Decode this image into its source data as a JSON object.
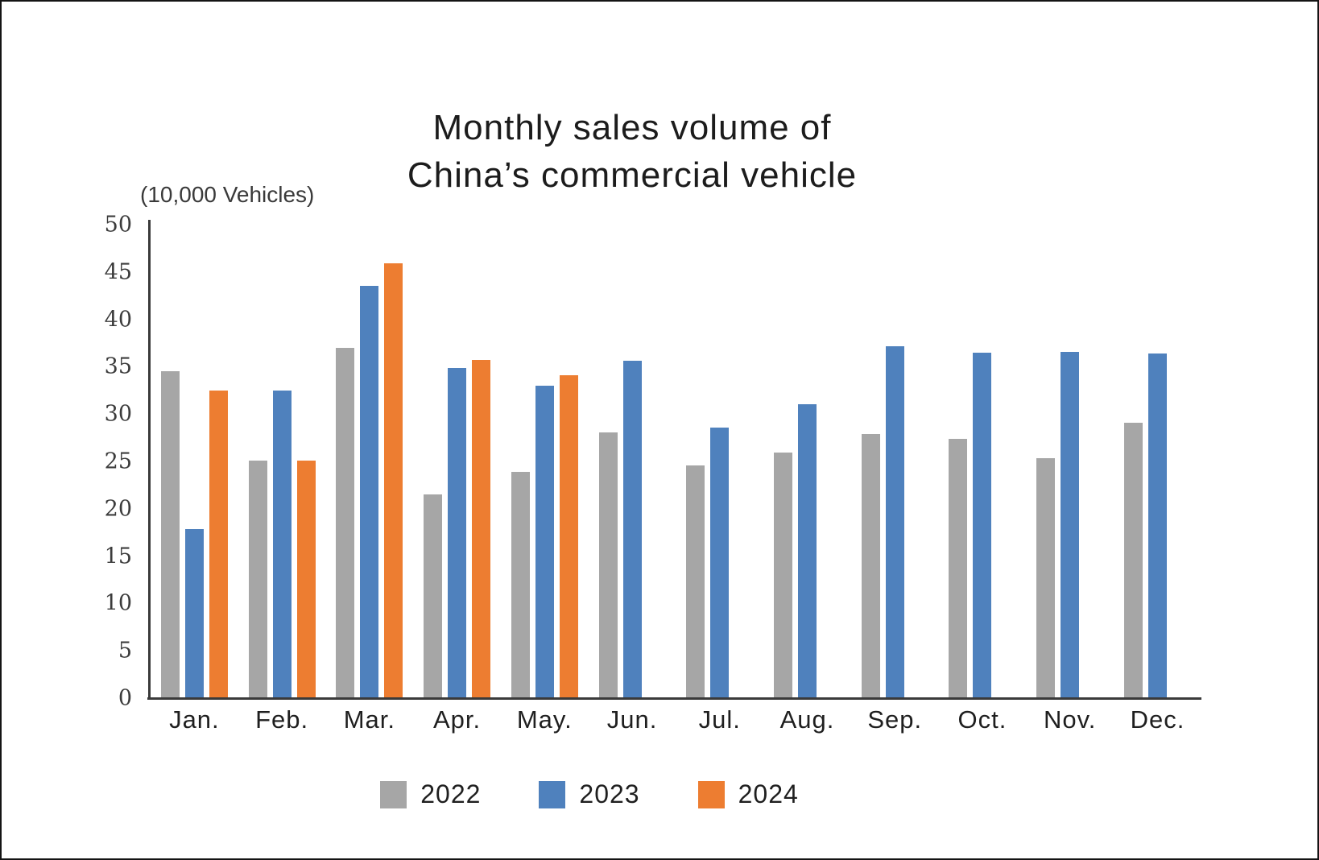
{
  "title": {
    "line1": "Monthly sales volume of",
    "line2": "China’s commercial vehicle"
  },
  "unit_label": "(10,000 Vehicles)",
  "colors": {
    "series_2022": "#a6a6a6",
    "series_2023": "#4f81bd",
    "series_2024": "#ed7d31",
    "axis": "#3a3a3a",
    "text": "#1f1f1f"
  },
  "chart_data": {
    "type": "bar",
    "title": "Monthly sales volume of China’s commercial vehicle",
    "ylabel": "(10,000 Vehicles)",
    "xlabel": "",
    "ylim": [
      0,
      50
    ],
    "yticks": [
      0,
      5,
      10,
      15,
      20,
      25,
      30,
      35,
      40,
      45,
      50
    ],
    "grid": false,
    "legend_position": "bottom",
    "categories": [
      "Jan.",
      "Feb.",
      "Mar.",
      "Apr.",
      "May.",
      "Jun.",
      "Jul.",
      "Aug.",
      "Sep.",
      "Oct.",
      "Nov.",
      "Dec."
    ],
    "series": [
      {
        "name": "2022",
        "color": "#a6a6a6",
        "values": [
          34.5,
          25.1,
          37.0,
          21.5,
          23.9,
          28.1,
          24.6,
          25.9,
          27.9,
          27.4,
          25.3,
          29.1
        ]
      },
      {
        "name": "2023",
        "color": "#4f81bd",
        "values": [
          17.9,
          32.5,
          43.5,
          34.9,
          33.0,
          35.6,
          28.6,
          31.0,
          37.2,
          36.5,
          36.6,
          36.4
        ]
      },
      {
        "name": "2024",
        "color": "#ed7d31",
        "values": [
          32.5,
          25.1,
          45.9,
          35.7,
          34.1,
          null,
          null,
          null,
          null,
          null,
          null,
          null
        ]
      }
    ]
  },
  "legend": {
    "items": [
      "2022",
      "2023",
      "2024"
    ]
  }
}
